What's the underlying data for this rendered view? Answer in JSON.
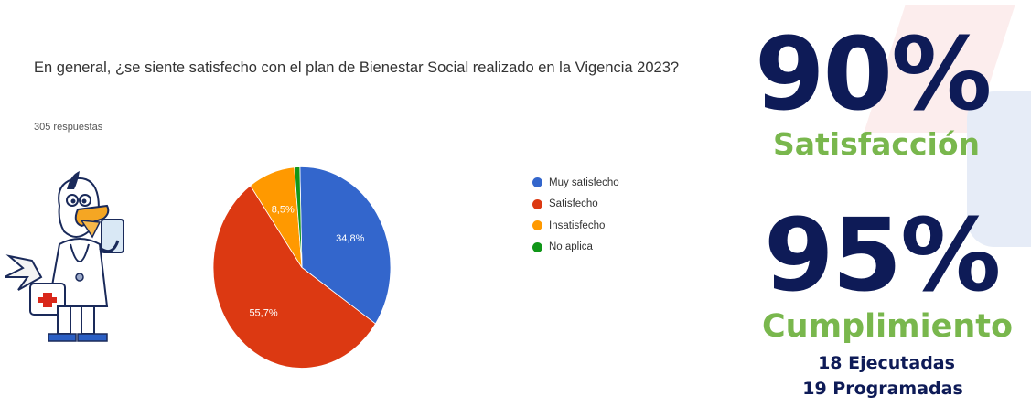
{
  "question": "En general,  ¿se siente satisfecho con el plan de Bienestar Social realizado en la Vigencia 2023?",
  "responses": "305 respuestas",
  "chart_data": {
    "type": "pie",
    "categories": [
      "Muy satisfecho",
      "Satisfecho",
      "Insatisfecho",
      "No aplica"
    ],
    "values": [
      34.8,
      55.7,
      8.5,
      1.0
    ],
    "labels": [
      "34,8%",
      "55,7%",
      "8,5%",
      ""
    ],
    "colors": [
      "#3366cc",
      "#dc3912",
      "#ff9900",
      "#109618"
    ],
    "legend_position": "right"
  },
  "stats": {
    "satisfaction_value": "90%",
    "satisfaction_label": "Satisfacción",
    "compliance_value": "95%",
    "compliance_label": "Cumplimiento",
    "executed": "18 Ejecutadas",
    "scheduled": "19 Programadas"
  },
  "colors": {
    "navy": "#0e1b57",
    "green": "#79b74d"
  }
}
